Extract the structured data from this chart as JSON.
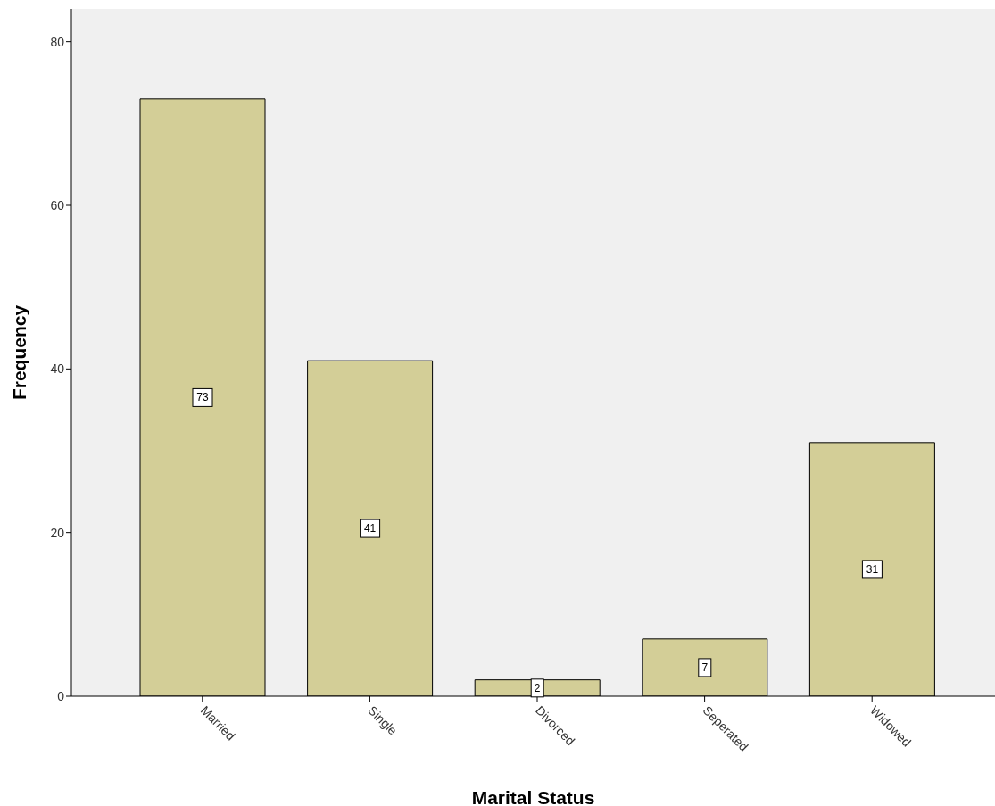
{
  "chart_data": {
    "type": "bar",
    "xlabel": "Marital Status",
    "ylabel": "Frequency",
    "categories": [
      "Married",
      "Single",
      "Divorced",
      "Seperated",
      "Widowed"
    ],
    "values": [
      73,
      41,
      2,
      7,
      31
    ],
    "color": "#d3ce97",
    "ylim": [
      0,
      84
    ],
    "yticks": [
      0,
      20,
      40,
      60,
      80
    ],
    "grid": false,
    "data_labels": true
  }
}
